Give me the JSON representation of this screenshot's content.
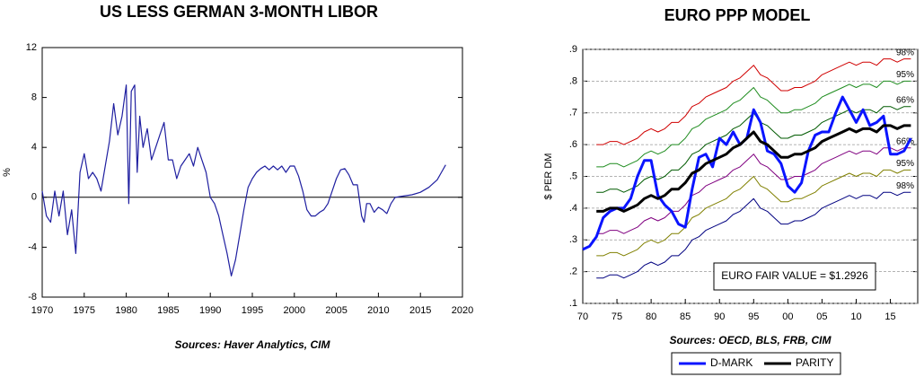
{
  "chart_data": [
    {
      "type": "line",
      "title": "US LESS GERMAN 3-MONTH LIBOR",
      "y_label": "%",
      "source": "Sources:  Haver Analytics, CIM",
      "color": "#1f1fa0",
      "zero_line": true,
      "grid": false,
      "xlim": [
        1970,
        2020
      ],
      "xticks": [
        1970,
        1975,
        1980,
        1985,
        1990,
        1995,
        2000,
        2005,
        2010,
        2015,
        2020
      ],
      "ylim": [
        -8,
        12
      ],
      "yticks": [
        -8,
        -4,
        0,
        4,
        8,
        12
      ],
      "x": [
        1970,
        1970.5,
        1971,
        1971.5,
        1972,
        1972.5,
        1973,
        1973.5,
        1974,
        1974.5,
        1975,
        1975.5,
        1976,
        1976.5,
        1977,
        1977.5,
        1978,
        1978.5,
        1979,
        1979.5,
        1980,
        1980.3,
        1980.6,
        1981,
        1981.3,
        1981.6,
        1982,
        1982.5,
        1983,
        1983.5,
        1984,
        1984.5,
        1985,
        1985.5,
        1986,
        1986.5,
        1987,
        1987.5,
        1988,
        1988.5,
        1989,
        1989.5,
        1990,
        1990.5,
        1991,
        1991.5,
        1992,
        1992.5,
        1993,
        1993.5,
        1994,
        1994.5,
        1995,
        1995.5,
        1996,
        1996.5,
        1997,
        1997.5,
        1998,
        1998.5,
        1999,
        1999.5,
        2000,
        2000.5,
        2001,
        2001.5,
        2002,
        2002.5,
        2003,
        2003.5,
        2004,
        2004.5,
        2005,
        2005.5,
        2006,
        2006.5,
        2007,
        2007.5,
        2008,
        2008.3,
        2008.6,
        2009,
        2009.5,
        2010,
        2010.5,
        2011,
        2011.5,
        2012,
        2013,
        2014,
        2015,
        2016,
        2017,
        2017.5,
        2018
      ],
      "values": [
        0.5,
        -1.5,
        -2,
        0.5,
        -1.5,
        0.5,
        -3,
        -1,
        -4.5,
        2,
        3.5,
        1.5,
        2,
        1.5,
        0.5,
        2.5,
        4.5,
        7.5,
        5,
        6.5,
        9,
        -0.5,
        8.5,
        9,
        2,
        6.5,
        4,
        5.5,
        3,
        4,
        5,
        6,
        3,
        3,
        1.5,
        2.5,
        3,
        3.5,
        2.5,
        4,
        3,
        2,
        0,
        -0.5,
        -1.5,
        -3,
        -4.5,
        -6.3,
        -5,
        -3,
        -1,
        0.8,
        1.5,
        2,
        2.3,
        2.5,
        2.2,
        2.5,
        2.2,
        2.5,
        2,
        2.5,
        2.5,
        1.7,
        0.5,
        -1,
        -1.5,
        -1.5,
        -1.2,
        -1,
        -0.5,
        0.5,
        1.5,
        2.2,
        2.3,
        1.8,
        1,
        1,
        -1.5,
        -2,
        -0.5,
        -0.5,
        -1.2,
        -0.8,
        -1,
        -1.3,
        -0.5,
        0,
        0.1,
        0.2,
        0.4,
        0.8,
        1.4,
        2,
        2.6
      ]
    },
    {
      "type": "line",
      "title": "EURO PPP MODEL",
      "y_label": "$ PER DM",
      "source": "Sources:  OECD, BLS, FRB, CIM",
      "annotation": "EURO FAIR VALUE = $1.2926",
      "grid": true,
      "legend": "bottom",
      "xlim": [
        1970,
        2019
      ],
      "xticks": [
        {
          "value": 1970,
          "label": "70"
        },
        {
          "value": 1975,
          "label": "75"
        },
        {
          "value": 1980,
          "label": "80"
        },
        {
          "value": 1985,
          "label": "85"
        },
        {
          "value": 1990,
          "label": "90"
        },
        {
          "value": 1995,
          "label": "95"
        },
        {
          "value": 2000,
          "label": "00"
        },
        {
          "value": 2005,
          "label": "05"
        },
        {
          "value": 2010,
          "label": "10"
        },
        {
          "value": 2015,
          "label": "15"
        }
      ],
      "ylim": [
        0.1,
        0.9
      ],
      "yticks": [
        {
          "value": 0.1,
          "label": ".1"
        },
        {
          "value": 0.2,
          "label": ".2"
        },
        {
          "value": 0.3,
          "label": ".3"
        },
        {
          "value": 0.4,
          "label": ".4"
        },
        {
          "value": 0.5,
          "label": ".5"
        },
        {
          "value": 0.6,
          "label": ".6"
        },
        {
          "value": 0.7,
          "label": ".7"
        },
        {
          "value": 0.8,
          "label": ".8"
        },
        {
          "value": 0.9,
          "label": ".9"
        }
      ],
      "x": [
        1970,
        1971,
        1972,
        1973,
        1974,
        1975,
        1976,
        1977,
        1978,
        1979,
        1980,
        1981,
        1982,
        1983,
        1984,
        1985,
        1986,
        1987,
        1988,
        1989,
        1990,
        1991,
        1992,
        1993,
        1994,
        1995,
        1996,
        1997,
        1998,
        1999,
        2000,
        2001,
        2002,
        2003,
        2004,
        2005,
        2006,
        2007,
        2008,
        2009,
        2010,
        2011,
        2012,
        2013,
        2014,
        2015,
        2016,
        2017,
        2018
      ],
      "bands": [
        {
          "label": "98%",
          "color": "#d00000",
          "values": [
            null,
            null,
            0.6,
            0.6,
            0.61,
            0.61,
            0.6,
            0.61,
            0.62,
            0.64,
            0.65,
            0.64,
            0.65,
            0.67,
            0.67,
            0.69,
            0.72,
            0.73,
            0.75,
            0.76,
            0.77,
            0.78,
            0.8,
            0.81,
            0.83,
            0.85,
            0.82,
            0.81,
            0.79,
            0.77,
            0.77,
            0.78,
            0.78,
            0.79,
            0.8,
            0.82,
            0.83,
            0.84,
            0.85,
            0.86,
            0.85,
            0.86,
            0.86,
            0.85,
            0.87,
            0.87,
            0.86,
            0.87,
            0.87
          ]
        },
        {
          "label": "95%",
          "color": "#1e8c1e",
          "values": [
            null,
            null,
            0.53,
            0.53,
            0.54,
            0.54,
            0.53,
            0.54,
            0.55,
            0.57,
            0.58,
            0.57,
            0.58,
            0.6,
            0.6,
            0.62,
            0.65,
            0.66,
            0.68,
            0.69,
            0.7,
            0.71,
            0.73,
            0.74,
            0.76,
            0.78,
            0.75,
            0.74,
            0.72,
            0.7,
            0.7,
            0.71,
            0.71,
            0.72,
            0.73,
            0.75,
            0.76,
            0.77,
            0.78,
            0.79,
            0.78,
            0.79,
            0.79,
            0.78,
            0.8,
            0.8,
            0.79,
            0.8,
            0.8
          ]
        },
        {
          "label": "66%",
          "color": "#005a00",
          "values": [
            null,
            null,
            0.45,
            0.45,
            0.46,
            0.46,
            0.45,
            0.46,
            0.47,
            0.49,
            0.5,
            0.49,
            0.5,
            0.52,
            0.52,
            0.54,
            0.57,
            0.58,
            0.6,
            0.61,
            0.62,
            0.63,
            0.65,
            0.66,
            0.68,
            0.7,
            0.67,
            0.66,
            0.64,
            0.62,
            0.62,
            0.63,
            0.63,
            0.64,
            0.65,
            0.67,
            0.68,
            0.69,
            0.7,
            0.71,
            0.7,
            0.71,
            0.71,
            0.7,
            0.72,
            0.72,
            0.71,
            0.72,
            0.72
          ]
        },
        {
          "label": "66%",
          "color": "#800080",
          "values": [
            null,
            null,
            0.32,
            0.32,
            0.33,
            0.33,
            0.32,
            0.33,
            0.34,
            0.36,
            0.37,
            0.36,
            0.37,
            0.39,
            0.39,
            0.41,
            0.44,
            0.45,
            0.47,
            0.48,
            0.49,
            0.5,
            0.52,
            0.53,
            0.55,
            0.57,
            0.54,
            0.53,
            0.51,
            0.49,
            0.49,
            0.5,
            0.5,
            0.51,
            0.52,
            0.54,
            0.55,
            0.56,
            0.57,
            0.58,
            0.57,
            0.58,
            0.58,
            0.57,
            0.59,
            0.59,
            0.58,
            0.59,
            0.59
          ]
        },
        {
          "label": "95%",
          "color": "#808000",
          "values": [
            null,
            null,
            0.25,
            0.25,
            0.26,
            0.26,
            0.25,
            0.26,
            0.27,
            0.29,
            0.3,
            0.29,
            0.3,
            0.32,
            0.32,
            0.34,
            0.37,
            0.38,
            0.4,
            0.41,
            0.42,
            0.43,
            0.45,
            0.46,
            0.48,
            0.5,
            0.47,
            0.46,
            0.44,
            0.42,
            0.42,
            0.43,
            0.43,
            0.44,
            0.45,
            0.47,
            0.48,
            0.49,
            0.5,
            0.51,
            0.5,
            0.51,
            0.51,
            0.5,
            0.52,
            0.52,
            0.51,
            0.52,
            0.52
          ]
        },
        {
          "label": "98%",
          "color": "#000080",
          "values": [
            null,
            null,
            0.18,
            0.18,
            0.19,
            0.19,
            0.18,
            0.19,
            0.2,
            0.22,
            0.23,
            0.22,
            0.23,
            0.25,
            0.25,
            0.27,
            0.3,
            0.31,
            0.33,
            0.34,
            0.35,
            0.36,
            0.38,
            0.39,
            0.41,
            0.43,
            0.4,
            0.39,
            0.37,
            0.35,
            0.35,
            0.36,
            0.36,
            0.37,
            0.38,
            0.4,
            0.41,
            0.42,
            0.43,
            0.44,
            0.43,
            0.44,
            0.44,
            0.43,
            0.45,
            0.45,
            0.44,
            0.45,
            0.45
          ]
        }
      ],
      "series": [
        {
          "name": "D-MARK",
          "color": "#0a14ff",
          "values": [
            0.27,
            0.28,
            0.31,
            0.37,
            0.39,
            0.4,
            0.4,
            0.43,
            0.5,
            0.55,
            0.55,
            0.44,
            0.41,
            0.39,
            0.35,
            0.34,
            0.46,
            0.56,
            0.57,
            0.53,
            0.62,
            0.6,
            0.64,
            0.6,
            0.62,
            0.71,
            0.67,
            0.58,
            0.57,
            0.54,
            0.47,
            0.45,
            0.48,
            0.58,
            0.63,
            0.64,
            0.64,
            0.7,
            0.75,
            0.71,
            0.67,
            0.71,
            0.66,
            0.67,
            0.69,
            0.57,
            0.57,
            0.58,
            0.62
          ]
        },
        {
          "name": "PARITY",
          "color": "#000000",
          "values": [
            null,
            null,
            0.39,
            0.39,
            0.4,
            0.4,
            0.39,
            0.4,
            0.41,
            0.43,
            0.44,
            0.43,
            0.44,
            0.46,
            0.46,
            0.48,
            0.51,
            0.52,
            0.54,
            0.55,
            0.56,
            0.57,
            0.59,
            0.6,
            0.62,
            0.64,
            0.61,
            0.6,
            0.58,
            0.56,
            0.56,
            0.57,
            0.57,
            0.58,
            0.59,
            0.61,
            0.62,
            0.63,
            0.64,
            0.65,
            0.64,
            0.65,
            0.65,
            0.64,
            0.66,
            0.66,
            0.65,
            0.66,
            0.66
          ]
        }
      ]
    }
  ]
}
